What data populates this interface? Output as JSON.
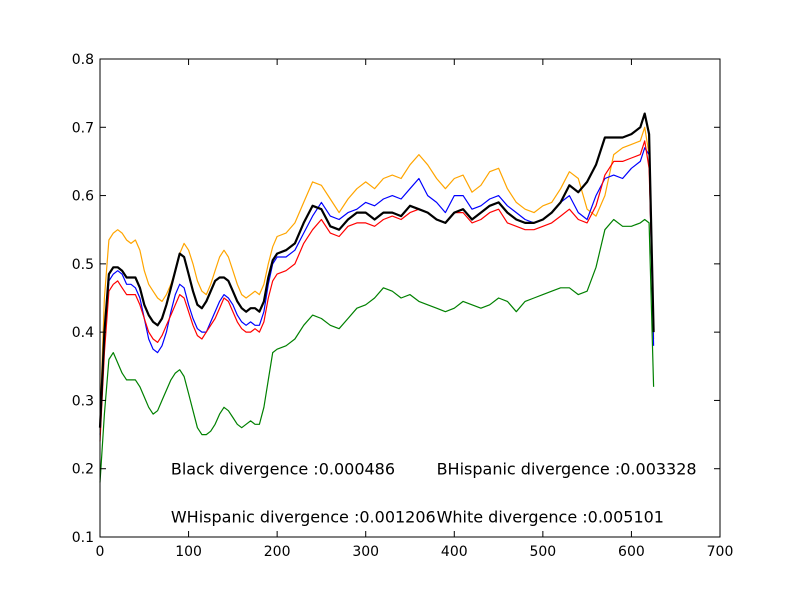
{
  "chart_data": {
    "type": "line",
    "title": "",
    "xlabel": "",
    "ylabel": "",
    "xlim": [
      0,
      700
    ],
    "ylim": [
      0.1,
      0.8
    ],
    "x_ticks": [
      0,
      100,
      200,
      300,
      400,
      500,
      600,
      700
    ],
    "y_ticks": [
      0.1,
      0.2,
      0.3,
      0.4,
      0.5,
      0.6,
      0.7,
      0.8
    ],
    "x_tick_labels": [
      "0",
      "100",
      "200",
      "300",
      "400",
      "500",
      "600",
      "700"
    ],
    "y_tick_labels": [
      "0.1",
      "0.2",
      "0.3",
      "0.4",
      "0.5",
      "0.6",
      "0.7",
      "0.8"
    ],
    "grid": false,
    "legend": false,
    "series": [
      {
        "color": "#ffa500",
        "stroke": 1.2,
        "x": [
          0,
          5,
          10,
          15,
          20,
          25,
          30,
          35,
          40,
          45,
          50,
          55,
          60,
          65,
          70,
          75,
          80,
          85,
          90,
          95,
          100,
          105,
          110,
          115,
          120,
          125,
          130,
          135,
          140,
          145,
          150,
          155,
          160,
          165,
          170,
          175,
          180,
          185,
          190,
          195,
          200,
          210,
          220,
          230,
          240,
          250,
          260,
          270,
          280,
          290,
          300,
          310,
          320,
          330,
          340,
          350,
          360,
          370,
          380,
          390,
          400,
          410,
          420,
          430,
          440,
          450,
          460,
          470,
          480,
          490,
          500,
          510,
          520,
          530,
          540,
          550,
          560,
          570,
          580,
          590,
          600,
          610,
          615,
          620,
          625
        ],
        "y": [
          0.27,
          0.45,
          0.535,
          0.545,
          0.55,
          0.545,
          0.535,
          0.53,
          0.535,
          0.52,
          0.49,
          0.47,
          0.46,
          0.45,
          0.445,
          0.455,
          0.47,
          0.49,
          0.515,
          0.53,
          0.52,
          0.5,
          0.475,
          0.46,
          0.455,
          0.47,
          0.49,
          0.51,
          0.52,
          0.51,
          0.49,
          0.47,
          0.455,
          0.45,
          0.455,
          0.46,
          0.455,
          0.47,
          0.5,
          0.525,
          0.54,
          0.545,
          0.56,
          0.59,
          0.62,
          0.615,
          0.595,
          0.575,
          0.595,
          0.61,
          0.62,
          0.61,
          0.625,
          0.63,
          0.625,
          0.645,
          0.66,
          0.645,
          0.625,
          0.61,
          0.625,
          0.63,
          0.605,
          0.615,
          0.635,
          0.64,
          0.61,
          0.59,
          0.58,
          0.575,
          0.585,
          0.59,
          0.61,
          0.635,
          0.625,
          0.58,
          0.57,
          0.6,
          0.66,
          0.67,
          0.675,
          0.68,
          0.7,
          0.66,
          0.39
        ]
      },
      {
        "color": "#0000ff",
        "stroke": 1.2,
        "x": [
          0,
          5,
          10,
          15,
          20,
          25,
          30,
          35,
          40,
          45,
          50,
          55,
          60,
          65,
          70,
          75,
          80,
          85,
          90,
          95,
          100,
          105,
          110,
          115,
          120,
          125,
          130,
          135,
          140,
          145,
          150,
          155,
          160,
          165,
          170,
          175,
          180,
          185,
          190,
          195,
          200,
          210,
          220,
          230,
          240,
          250,
          260,
          270,
          280,
          290,
          300,
          310,
          320,
          330,
          340,
          350,
          360,
          370,
          380,
          390,
          400,
          410,
          420,
          430,
          440,
          450,
          460,
          470,
          480,
          490,
          500,
          510,
          520,
          530,
          540,
          550,
          560,
          570,
          580,
          590,
          600,
          610,
          615,
          620,
          625
        ],
        "y": [
          0.25,
          0.38,
          0.475,
          0.485,
          0.49,
          0.485,
          0.47,
          0.47,
          0.465,
          0.45,
          0.42,
          0.39,
          0.375,
          0.37,
          0.38,
          0.4,
          0.43,
          0.455,
          0.47,
          0.465,
          0.44,
          0.42,
          0.405,
          0.4,
          0.4,
          0.415,
          0.43,
          0.445,
          0.455,
          0.45,
          0.44,
          0.425,
          0.415,
          0.41,
          0.415,
          0.41,
          0.41,
          0.43,
          0.47,
          0.5,
          0.51,
          0.51,
          0.52,
          0.545,
          0.57,
          0.59,
          0.57,
          0.565,
          0.575,
          0.58,
          0.59,
          0.585,
          0.595,
          0.6,
          0.595,
          0.61,
          0.625,
          0.6,
          0.59,
          0.575,
          0.6,
          0.6,
          0.58,
          0.585,
          0.595,
          0.6,
          0.585,
          0.575,
          0.565,
          0.56,
          0.565,
          0.575,
          0.59,
          0.6,
          0.575,
          0.565,
          0.6,
          0.625,
          0.63,
          0.625,
          0.64,
          0.65,
          0.67,
          0.66,
          0.38
        ]
      },
      {
        "color": "#ff0000",
        "stroke": 1.2,
        "x": [
          0,
          5,
          10,
          15,
          20,
          25,
          30,
          35,
          40,
          45,
          50,
          55,
          60,
          65,
          70,
          75,
          80,
          85,
          90,
          95,
          100,
          105,
          110,
          115,
          120,
          125,
          130,
          135,
          140,
          145,
          150,
          155,
          160,
          165,
          170,
          175,
          180,
          185,
          190,
          195,
          200,
          210,
          220,
          230,
          240,
          250,
          260,
          270,
          280,
          290,
          300,
          310,
          320,
          330,
          340,
          350,
          360,
          370,
          380,
          390,
          400,
          410,
          420,
          430,
          440,
          450,
          460,
          470,
          480,
          490,
          500,
          510,
          520,
          530,
          540,
          550,
          560,
          570,
          580,
          590,
          600,
          610,
          615,
          620,
          625
        ],
        "y": [
          0.24,
          0.37,
          0.46,
          0.47,
          0.475,
          0.465,
          0.455,
          0.455,
          0.455,
          0.44,
          0.42,
          0.4,
          0.39,
          0.385,
          0.395,
          0.41,
          0.425,
          0.44,
          0.455,
          0.45,
          0.43,
          0.41,
          0.395,
          0.39,
          0.4,
          0.41,
          0.42,
          0.435,
          0.45,
          0.445,
          0.43,
          0.415,
          0.405,
          0.4,
          0.4,
          0.405,
          0.4,
          0.415,
          0.45,
          0.475,
          0.485,
          0.49,
          0.5,
          0.53,
          0.55,
          0.565,
          0.545,
          0.54,
          0.555,
          0.56,
          0.56,
          0.555,
          0.565,
          0.57,
          0.565,
          0.575,
          0.58,
          0.575,
          0.565,
          0.56,
          0.575,
          0.575,
          0.56,
          0.565,
          0.575,
          0.58,
          0.56,
          0.555,
          0.55,
          0.55,
          0.555,
          0.56,
          0.57,
          0.58,
          0.565,
          0.56,
          0.585,
          0.63,
          0.65,
          0.65,
          0.655,
          0.66,
          0.68,
          0.64,
          0.41
        ]
      },
      {
        "color": "#000000",
        "stroke": 2.2,
        "x": [
          0,
          5,
          10,
          15,
          20,
          25,
          30,
          35,
          40,
          45,
          50,
          55,
          60,
          65,
          70,
          75,
          80,
          85,
          90,
          95,
          100,
          105,
          110,
          115,
          120,
          125,
          130,
          135,
          140,
          145,
          150,
          155,
          160,
          165,
          170,
          175,
          180,
          185,
          190,
          195,
          200,
          210,
          220,
          230,
          240,
          250,
          260,
          270,
          280,
          290,
          300,
          310,
          320,
          330,
          340,
          350,
          360,
          370,
          380,
          390,
          400,
          410,
          420,
          430,
          440,
          450,
          460,
          470,
          480,
          490,
          500,
          510,
          520,
          530,
          540,
          550,
          560,
          570,
          580,
          590,
          600,
          610,
          615,
          620,
          625
        ],
        "y": [
          0.26,
          0.4,
          0.485,
          0.495,
          0.495,
          0.49,
          0.48,
          0.48,
          0.48,
          0.465,
          0.44,
          0.425,
          0.415,
          0.41,
          0.42,
          0.44,
          0.465,
          0.49,
          0.515,
          0.51,
          0.485,
          0.46,
          0.44,
          0.435,
          0.445,
          0.46,
          0.475,
          0.48,
          0.48,
          0.475,
          0.46,
          0.445,
          0.435,
          0.43,
          0.435,
          0.435,
          0.43,
          0.445,
          0.48,
          0.505,
          0.515,
          0.52,
          0.53,
          0.56,
          0.585,
          0.58,
          0.555,
          0.55,
          0.565,
          0.575,
          0.575,
          0.565,
          0.575,
          0.575,
          0.57,
          0.585,
          0.58,
          0.575,
          0.565,
          0.56,
          0.575,
          0.58,
          0.565,
          0.575,
          0.585,
          0.59,
          0.575,
          0.565,
          0.56,
          0.56,
          0.565,
          0.575,
          0.59,
          0.615,
          0.605,
          0.62,
          0.645,
          0.685,
          0.685,
          0.685,
          0.69,
          0.7,
          0.72,
          0.69,
          0.4
        ]
      },
      {
        "color": "#008000",
        "stroke": 1.2,
        "x": [
          0,
          5,
          10,
          15,
          20,
          25,
          30,
          35,
          40,
          45,
          50,
          55,
          60,
          65,
          70,
          75,
          80,
          85,
          90,
          95,
          100,
          105,
          110,
          115,
          120,
          125,
          130,
          135,
          140,
          145,
          150,
          155,
          160,
          165,
          170,
          175,
          180,
          185,
          190,
          195,
          200,
          210,
          220,
          230,
          240,
          250,
          260,
          270,
          280,
          290,
          300,
          310,
          320,
          330,
          340,
          350,
          360,
          370,
          380,
          390,
          400,
          410,
          420,
          430,
          440,
          450,
          460,
          470,
          480,
          490,
          500,
          510,
          520,
          530,
          540,
          550,
          560,
          570,
          580,
          590,
          600,
          610,
          615,
          620,
          625
        ],
        "y": [
          0.18,
          0.28,
          0.36,
          0.37,
          0.355,
          0.34,
          0.33,
          0.33,
          0.33,
          0.32,
          0.305,
          0.29,
          0.28,
          0.285,
          0.3,
          0.315,
          0.33,
          0.34,
          0.345,
          0.335,
          0.31,
          0.285,
          0.26,
          0.25,
          0.25,
          0.255,
          0.265,
          0.28,
          0.29,
          0.285,
          0.275,
          0.265,
          0.26,
          0.265,
          0.27,
          0.265,
          0.265,
          0.29,
          0.33,
          0.37,
          0.375,
          0.38,
          0.39,
          0.41,
          0.425,
          0.42,
          0.41,
          0.405,
          0.42,
          0.435,
          0.44,
          0.45,
          0.465,
          0.46,
          0.45,
          0.455,
          0.445,
          0.44,
          0.435,
          0.43,
          0.435,
          0.445,
          0.44,
          0.435,
          0.44,
          0.45,
          0.445,
          0.43,
          0.445,
          0.45,
          0.455,
          0.46,
          0.465,
          0.465,
          0.455,
          0.46,
          0.495,
          0.55,
          0.565,
          0.555,
          0.555,
          0.56,
          0.565,
          0.56,
          0.32
        ]
      }
    ],
    "annotations": [
      {
        "text": "Black divergence :0.000486",
        "x": 80,
        "y": 0.2
      },
      {
        "text": "BHispanic divergence :0.003328",
        "x": 380,
        "y": 0.2
      },
      {
        "text": "WHispanic divergence :0.001206",
        "x": 80,
        "y": 0.13
      },
      {
        "text": "White divergence :0.005101",
        "x": 380,
        "y": 0.13
      }
    ]
  }
}
